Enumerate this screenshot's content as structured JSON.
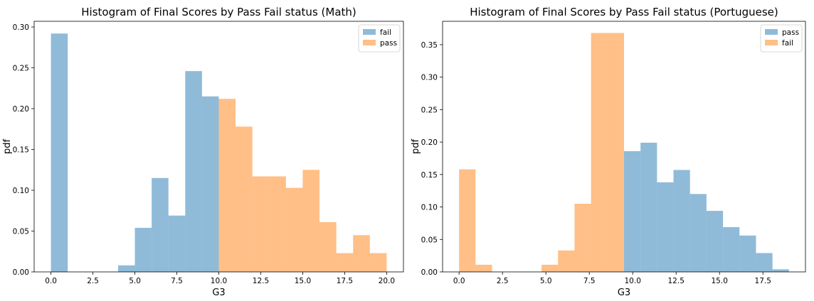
{
  "colors": {
    "blue": "#1f77b4",
    "orange": "#ff7f0e",
    "bar_opacity": 0.5
  },
  "chart_data": [
    {
      "type": "bar",
      "title": "Histogram of Final Scores by Pass Fail status (Math)",
      "xlabel": "G3",
      "ylabel": "pdf",
      "xlim": [
        -1.0,
        21.0
      ],
      "ylim": [
        0,
        0.307
      ],
      "xticks": [
        0.0,
        2.5,
        5.0,
        7.5,
        10.0,
        12.5,
        15.0,
        17.5,
        20.0
      ],
      "xtick_labels": [
        "0.0",
        "2.5",
        "5.0",
        "7.5",
        "10.0",
        "12.5",
        "15.0",
        "17.5",
        "20.0"
      ],
      "yticks": [
        0.0,
        0.05,
        0.1,
        0.15,
        0.2,
        0.25,
        0.3
      ],
      "ytick_labels": [
        "0.00",
        "0.05",
        "0.10",
        "0.15",
        "0.20",
        "0.25",
        "0.30"
      ],
      "legend": {
        "placement": "top-right",
        "entries": [
          "fail",
          "pass"
        ]
      },
      "series": [
        {
          "name": "fail",
          "color": "blue",
          "bins": [
            {
              "x0": 0.0,
              "x1": 1.0,
              "y": 0.292
            },
            {
              "x0": 4.0,
              "x1": 5.0,
              "y": 0.008
            },
            {
              "x0": 5.0,
              "x1": 6.0,
              "y": 0.054
            },
            {
              "x0": 6.0,
              "x1": 7.0,
              "y": 0.115
            },
            {
              "x0": 7.0,
              "x1": 8.0,
              "y": 0.069
            },
            {
              "x0": 8.0,
              "x1": 9.0,
              "y": 0.246
            },
            {
              "x0": 9.0,
              "x1": 10.0,
              "y": 0.215
            }
          ]
        },
        {
          "name": "pass",
          "color": "orange",
          "bins": [
            {
              "x0": 10.0,
              "x1": 11.0,
              "y": 0.212
            },
            {
              "x0": 11.0,
              "x1": 12.0,
              "y": 0.178
            },
            {
              "x0": 12.0,
              "x1": 13.0,
              "y": 0.117
            },
            {
              "x0": 13.0,
              "x1": 14.0,
              "y": 0.117
            },
            {
              "x0": 14.0,
              "x1": 15.0,
              "y": 0.103
            },
            {
              "x0": 15.0,
              "x1": 16.0,
              "y": 0.125
            },
            {
              "x0": 16.0,
              "x1": 17.0,
              "y": 0.061
            },
            {
              "x0": 17.0,
              "x1": 18.0,
              "y": 0.023
            },
            {
              "x0": 18.0,
              "x1": 19.0,
              "y": 0.045
            },
            {
              "x0": 19.0,
              "x1": 20.0,
              "y": 0.023
            }
          ]
        }
      ]
    },
    {
      "type": "bar",
      "title": "Histogram of Final Scores by Pass Fail status (Portuguese)",
      "xlabel": "G3",
      "ylabel": "pdf",
      "xlim": [
        -0.95,
        19.95
      ],
      "ylim": [
        0,
        0.386
      ],
      "xticks": [
        0.0,
        2.5,
        5.0,
        7.5,
        10.0,
        12.5,
        15.0,
        17.5
      ],
      "xtick_labels": [
        "0.0",
        "2.5",
        "5.0",
        "7.5",
        "10.0",
        "12.5",
        "15.0",
        "17.5"
      ],
      "yticks": [
        0.0,
        0.05,
        0.1,
        0.15,
        0.2,
        0.25,
        0.3,
        0.35
      ],
      "ytick_labels": [
        "0.00",
        "0.05",
        "0.10",
        "0.15",
        "0.20",
        "0.25",
        "0.30",
        "0.35"
      ],
      "legend": {
        "placement": "top-right",
        "entries": [
          "pass",
          "fail"
        ]
      },
      "series": [
        {
          "name": "pass",
          "color": "blue",
          "bins": [
            {
              "x0": 9.5,
              "x1": 10.45,
              "y": 0.186
            },
            {
              "x0": 10.45,
              "x1": 11.4,
              "y": 0.199
            },
            {
              "x0": 11.4,
              "x1": 12.35,
              "y": 0.138
            },
            {
              "x0": 12.35,
              "x1": 13.3,
              "y": 0.157
            },
            {
              "x0": 13.3,
              "x1": 14.25,
              "y": 0.12
            },
            {
              "x0": 14.25,
              "x1": 15.2,
              "y": 0.094
            },
            {
              "x0": 15.2,
              "x1": 16.15,
              "y": 0.069
            },
            {
              "x0": 16.15,
              "x1": 17.1,
              "y": 0.056
            },
            {
              "x0": 17.1,
              "x1": 18.05,
              "y": 0.029
            },
            {
              "x0": 18.05,
              "x1": 19.0,
              "y": 0.004
            }
          ]
        },
        {
          "name": "fail",
          "color": "orange",
          "bins": [
            {
              "x0": 0.0,
              "x1": 0.95,
              "y": 0.158
            },
            {
              "x0": 0.95,
              "x1": 1.9,
              "y": 0.011
            },
            {
              "x0": 4.75,
              "x1": 5.7,
              "y": 0.011
            },
            {
              "x0": 5.7,
              "x1": 6.65,
              "y": 0.033
            },
            {
              "x0": 6.65,
              "x1": 7.6,
              "y": 0.105
            },
            {
              "x0": 7.6,
              "x1": 8.55,
              "y": 0.368
            },
            {
              "x0": 8.55,
              "x1": 9.5,
              "y": 0.368
            }
          ]
        }
      ]
    }
  ]
}
